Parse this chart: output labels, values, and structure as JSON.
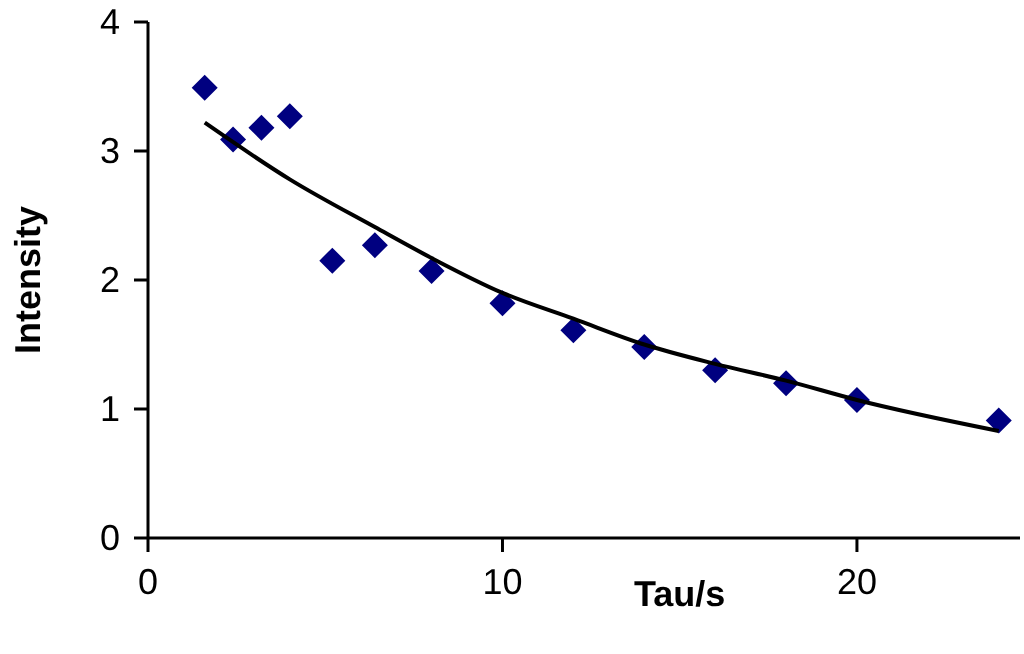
{
  "chart_data": {
    "type": "scatter",
    "xlabel": "Tau/s",
    "ylabel": "Intensity",
    "x": [
      1.6,
      2.4,
      3.2,
      4,
      5.2,
      6.4,
      8,
      10,
      12,
      14,
      16,
      18,
      20,
      24
    ],
    "marker": "diamond",
    "grid": false,
    "series": [
      {
        "color": "#000080",
        "values": [
          3.49,
          3.09,
          3.18,
          3.27,
          2.15,
          2.27,
          2.07,
          1.82,
          1.61,
          1.48,
          1.3,
          1.2,
          1.07,
          0.91
        ]
      },
      {
        "type": "line",
        "color": "#000000",
        "marker": "none",
        "x": [
          1.6,
          4,
          6.4,
          8,
          10,
          12,
          14,
          16,
          18,
          20,
          24
        ],
        "values": [
          3.22,
          2.78,
          2.41,
          2.17,
          1.9,
          1.7,
          1.5,
          1.35,
          1.22,
          1.07,
          0.83
        ]
      }
    ],
    "xlim": [
      0,
      24.6
    ],
    "xticks": [
      0,
      10,
      20
    ],
    "ylim": [
      0,
      4
    ],
    "yticks": [
      0,
      1,
      2,
      3,
      4
    ]
  }
}
